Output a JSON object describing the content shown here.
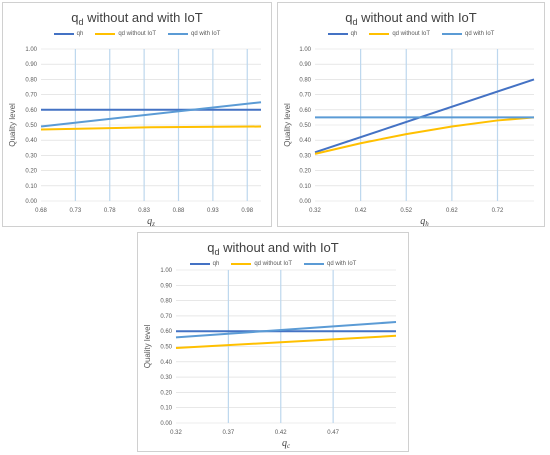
{
  "colors": {
    "qh": "#4472C4",
    "qd_without": "#FFC000",
    "qd_with": "#5B9BD5",
    "grid": "#D9D9D9",
    "vgrid": "#BDD7EE"
  },
  "chart_data": [
    {
      "type": "line",
      "title_main": "q",
      "title_sub": "d",
      "title_rest": " without and with IoT",
      "ylabel": "Quality level",
      "xlabel_main": "q",
      "xlabel_sub": "z",
      "ylim": [
        0,
        1
      ],
      "yticks": [
        "0.00",
        "0.10",
        "0.20",
        "0.30",
        "0.40",
        "0.50",
        "0.60",
        "0.70",
        "0.80",
        "0.90",
        "1.00"
      ],
      "xlim": [
        0.68,
        1.0
      ],
      "xticks": [
        "0.68",
        "0.73",
        "0.78",
        "0.83",
        "0.88",
        "0.93",
        "0.98"
      ],
      "grid": true,
      "legend_position": "top",
      "series": [
        {
          "name": "qh",
          "color_key": "qh",
          "x": [
            0.68,
            1.0
          ],
          "values": [
            0.6,
            0.6
          ]
        },
        {
          "name": "qd without IoT",
          "color_key": "qd_without",
          "x": [
            0.68,
            0.84,
            1.0
          ],
          "values": [
            0.47,
            0.485,
            0.49
          ]
        },
        {
          "name": "qd with IoT",
          "color_key": "qd_with",
          "x": [
            0.68,
            1.0
          ],
          "values": [
            0.49,
            0.65
          ]
        }
      ]
    },
    {
      "type": "line",
      "title_main": "q",
      "title_sub": "d",
      "title_rest": " without and with IoT",
      "ylabel": "Quality level",
      "xlabel_main": "q",
      "xlabel_sub": "h",
      "ylim": [
        0,
        1
      ],
      "yticks": [
        "0.00",
        "0.10",
        "0.20",
        "0.30",
        "0.40",
        "0.50",
        "0.60",
        "0.70",
        "0.80",
        "0.90",
        "1.00"
      ],
      "xlim": [
        0.32,
        0.8
      ],
      "xticks": [
        "0.32",
        "0.42",
        "0.52",
        "0.62",
        "0.72"
      ],
      "grid": true,
      "legend_position": "top",
      "series": [
        {
          "name": "qh",
          "color_key": "qh",
          "x": [
            0.32,
            0.8
          ],
          "values": [
            0.32,
            0.8
          ]
        },
        {
          "name": "qd without IoT",
          "color_key": "qd_without",
          "x": [
            0.32,
            0.42,
            0.52,
            0.62,
            0.72,
            0.8
          ],
          "values": [
            0.31,
            0.38,
            0.44,
            0.49,
            0.53,
            0.55
          ]
        },
        {
          "name": "qd with IoT",
          "color_key": "qd_with",
          "x": [
            0.32,
            0.8
          ],
          "values": [
            0.55,
            0.55
          ]
        }
      ]
    },
    {
      "type": "line",
      "title_main": "q",
      "title_sub": "d",
      "title_rest": " without and with IoT",
      "ylabel": "Quality level",
      "xlabel_main": "q",
      "xlabel_sub": "c",
      "ylim": [
        0,
        1
      ],
      "yticks": [
        "0.00",
        "0.10",
        "0.20",
        "0.30",
        "0.40",
        "0.50",
        "0.60",
        "0.70",
        "0.80",
        "0.90",
        "1.00"
      ],
      "xlim": [
        0.32,
        0.53
      ],
      "xticks": [
        "0.32",
        "0.37",
        "0.42",
        "0.47"
      ],
      "grid": true,
      "legend_position": "top",
      "series": [
        {
          "name": "qh",
          "color_key": "qh",
          "x": [
            0.32,
            0.53
          ],
          "values": [
            0.6,
            0.6
          ]
        },
        {
          "name": "qd without IoT",
          "color_key": "qd_without",
          "x": [
            0.32,
            0.53
          ],
          "values": [
            0.49,
            0.57
          ]
        },
        {
          "name": "qd with IoT",
          "color_key": "qd_with",
          "x": [
            0.32,
            0.53
          ],
          "values": [
            0.56,
            0.66
          ]
        }
      ]
    }
  ]
}
